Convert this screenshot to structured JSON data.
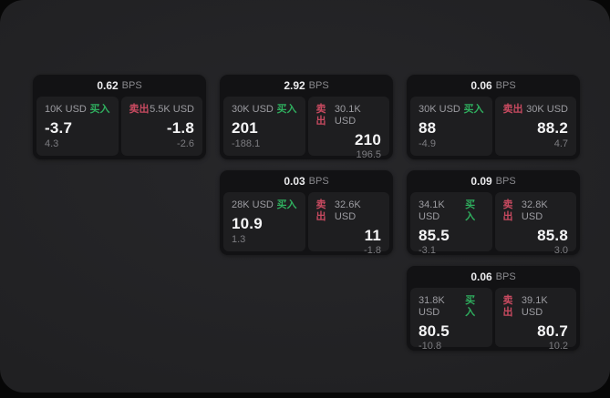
{
  "labels": {
    "bps_unit": "BPS",
    "buy": "买入",
    "sell": "卖出"
  },
  "colors": {
    "buy": "#2fae5e",
    "sell": "#c84a60",
    "background": "#070707",
    "surface": "#202022",
    "card": "#121214",
    "panel": "#1e1e20"
  },
  "cards": [
    {
      "row": 1,
      "col": 1,
      "bps": "0.62",
      "buy": {
        "amount": "10K USD",
        "value": "-3.7",
        "delta": "4.3"
      },
      "sell": {
        "amount": "5.5K USD",
        "value": "-1.8",
        "delta": "-2.6"
      }
    },
    {
      "row": 1,
      "col": 2,
      "bps": "2.92",
      "buy": {
        "amount": "30K USD",
        "value": "201",
        "delta": "-188.1"
      },
      "sell": {
        "amount": "30.1K USD",
        "value": "210",
        "delta": "196.5"
      }
    },
    {
      "row": 1,
      "col": 3,
      "bps": "0.06",
      "buy": {
        "amount": "30K USD",
        "value": "88",
        "delta": "-4.9"
      },
      "sell": {
        "amount": "30K USD",
        "value": "88.2",
        "delta": "4.7"
      }
    },
    {
      "row": 2,
      "col": 2,
      "bps": "0.03",
      "buy": {
        "amount": "28K USD",
        "value": "10.9",
        "delta": "1.3"
      },
      "sell": {
        "amount": "32.6K USD",
        "value": "11",
        "delta": "-1.8"
      }
    },
    {
      "row": 2,
      "col": 3,
      "bps": "0.09",
      "buy": {
        "amount": "34.1K USD",
        "value": "85.5",
        "delta": "-3.1"
      },
      "sell": {
        "amount": "32.8K USD",
        "value": "85.8",
        "delta": "3.0"
      }
    },
    {
      "row": 3,
      "col": 3,
      "bps": "0.06",
      "buy": {
        "amount": "31.8K USD",
        "value": "80.5",
        "delta": "-10.8"
      },
      "sell": {
        "amount": "39.1K USD",
        "value": "80.7",
        "delta": "10.2"
      }
    }
  ]
}
